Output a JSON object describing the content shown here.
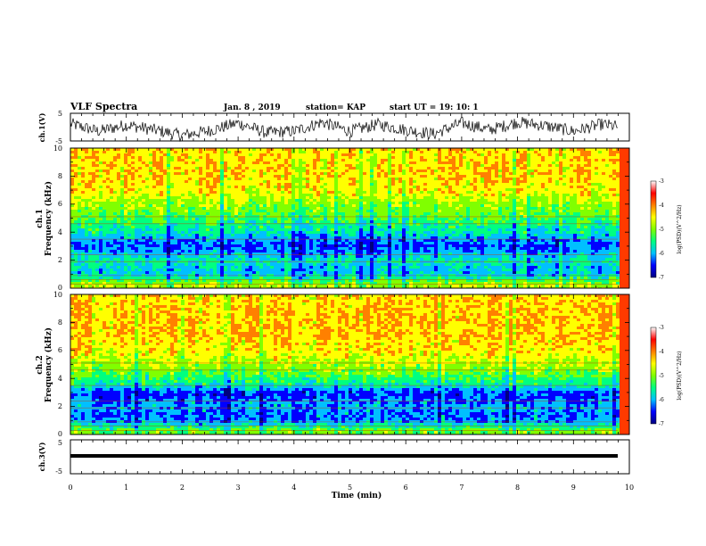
{
  "header": {
    "title": "VLF Spectra",
    "date": "Jan. 8 , 2019",
    "station": "station= KAP",
    "start": "start UT = 19: 10: 1"
  },
  "panels": {
    "ch1_wave": {
      "ylabel": "ch.1(V)",
      "yticks": [
        "5",
        "-5"
      ]
    },
    "ch1_spec": {
      "ylabel_top": "ch.1",
      "ylabel": "Frequency (kHz)",
      "yticks": [
        "0",
        "2",
        "4",
        "6",
        "8",
        "10"
      ]
    },
    "ch2_spec": {
      "ylabel_top": "ch.2",
      "ylabel": "Frequency (kHz)",
      "yticks": [
        "0",
        "2",
        "4",
        "6",
        "8",
        "10"
      ]
    },
    "ch3_wave": {
      "ylabel": "ch.3(V)",
      "yticks": [
        "5",
        "-5"
      ]
    }
  },
  "colorbar": {
    "label": "log(PSD)(V^2/Hz)",
    "ticks": [
      "-3",
      "-4",
      "-5",
      "-6",
      "-7"
    ],
    "colors": [
      "#000080",
      "#0000ff",
      "#00c0ff",
      "#00ff80",
      "#80ff00",
      "#ffff00",
      "#ff8000",
      "#ff0000",
      "#ffffff"
    ]
  },
  "xaxis": {
    "label": "Time (min)",
    "ticks": [
      "0",
      "1",
      "2",
      "3",
      "4",
      "5",
      "6",
      "7",
      "8",
      "9",
      "10"
    ]
  },
  "chart_data": [
    {
      "type": "line",
      "title": "ch.1 waveform",
      "xlabel": "Time (min)",
      "ylabel": "ch.1(V)",
      "xlim": [
        0,
        10
      ],
      "ylim": [
        -5,
        5
      ],
      "x": [
        0,
        0.5,
        1,
        1.5,
        2,
        2.5,
        3,
        3.5,
        4,
        4.5,
        5,
        5.5,
        6,
        6.5,
        7,
        7.5,
        8,
        8.5,
        9,
        9.5,
        9.8
      ],
      "series": [
        {
          "values": [
            1.2,
            -1.5,
            0.8,
            -1.0,
            -3.0,
            -1.2,
            1.5,
            -2.0,
            -1.5,
            1.8,
            -1.5,
            1.0,
            -1.0,
            -2.5,
            1.5,
            -1.0,
            1.8,
            0.5,
            -1.5,
            1.0,
            0.2
          ]
        }
      ]
    },
    {
      "type": "heatmap",
      "title": "ch.1 spectrogram",
      "xlabel": "Time (min)",
      "ylabel": "Frequency (kHz)",
      "xlim": [
        0,
        10
      ],
      "ylim": [
        0,
        10
      ],
      "zlabel": "log(PSD)(V^2/Hz)",
      "zlim": [
        -7,
        -3
      ],
      "freq_kHz": [
        0.25,
        1,
        1.5,
        2,
        2.5,
        3,
        3.5,
        4,
        4.5,
        5,
        6,
        7,
        8,
        9,
        10
      ],
      "mean_logpsd": [
        -4.2,
        -5.5,
        -5.4,
        -5.2,
        -5.6,
        -5.9,
        -5.7,
        -5.2,
        -5.0,
        -4.7,
        -4.3,
        -3.8,
        -3.7,
        -3.7,
        -3.7
      ]
    },
    {
      "type": "heatmap",
      "title": "ch.2 spectrogram",
      "xlabel": "Time (min)",
      "ylabel": "Frequency (kHz)",
      "xlim": [
        0,
        10
      ],
      "ylim": [
        0,
        10
      ],
      "zlabel": "log(PSD)(V^2/Hz)",
      "zlim": [
        -7,
        -3
      ],
      "freq_kHz": [
        0.25,
        1,
        1.5,
        2,
        2.5,
        3,
        3.5,
        4,
        4.5,
        5,
        6,
        7,
        8,
        9,
        10
      ],
      "mean_logpsd": [
        -4.5,
        -5.8,
        -5.8,
        -5.6,
        -5.9,
        -6.0,
        -5.2,
        -4.8,
        -4.5,
        -4.2,
        -3.8,
        -3.6,
        -3.6,
        -3.6,
        -3.7
      ]
    },
    {
      "type": "line",
      "title": "ch.3 waveform",
      "xlabel": "Time (min)",
      "ylabel": "ch.3(V)",
      "xlim": [
        0,
        10
      ],
      "ylim": [
        -5,
        5
      ],
      "x": [
        0,
        9.8
      ],
      "series": [
        {
          "values": [
            0,
            0
          ]
        }
      ]
    }
  ]
}
